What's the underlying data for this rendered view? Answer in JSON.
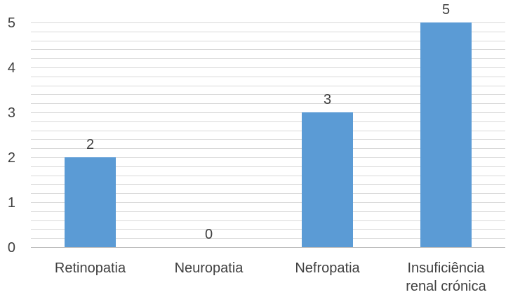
{
  "chart_data": {
    "type": "bar",
    "title": "",
    "xlabel": "",
    "ylabel": "",
    "categories": [
      "Retinopatia",
      "Neuropatia",
      "Nefropatia",
      "Insuficiência renal crónica"
    ],
    "category_lines": [
      [
        "Retinopatia"
      ],
      [
        "Neuropatia"
      ],
      [
        "Nefropatia"
      ],
      [
        "Insuficiência",
        "renal crónica"
      ]
    ],
    "values": [
      2,
      0,
      3,
      5
    ],
    "data_labels": [
      "2",
      "0",
      "3",
      "5"
    ],
    "ylim": [
      0,
      5
    ],
    "yticks": [
      "0",
      "1",
      "2",
      "3",
      "4",
      "5"
    ],
    "minor_gridline_step": 0.2,
    "grid": true,
    "legend": "none",
    "colors": {
      "bar": "#5b9bd5",
      "gridline": "#d9d9d9",
      "text": "#404040",
      "axis": "#bfbfbf"
    }
  }
}
